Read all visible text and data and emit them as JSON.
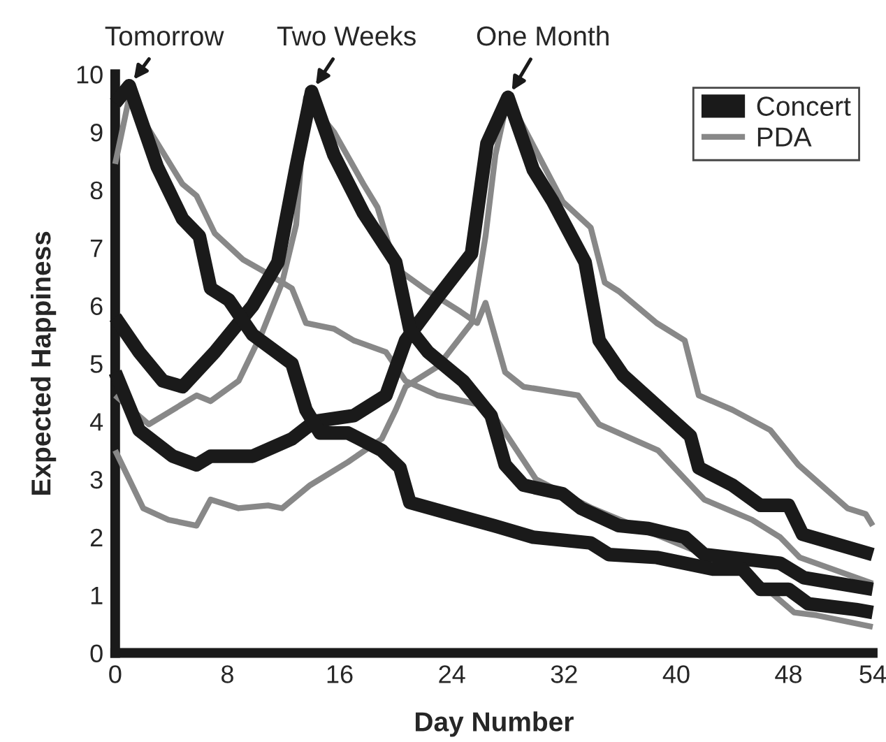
{
  "chart_data": {
    "type": "line",
    "xlabel": "Day Number",
    "ylabel": "Expected Happiness",
    "xlim": [
      0,
      54
    ],
    "xticks": [
      0,
      8,
      16,
      24,
      32,
      40,
      48,
      54
    ],
    "ylim": [
      0,
      10
    ],
    "yticks": [
      0,
      1,
      2,
      3,
      4,
      5,
      6,
      7,
      8,
      9,
      10
    ],
    "grid": false,
    "legend": "top right",
    "marker": "none",
    "line_style": "solid",
    "annotations": [
      {
        "text": "Tomorrow",
        "x": 1,
        "y": 9.8
      },
      {
        "text": "Two Weeks",
        "x": 14,
        "y": 9.7
      },
      {
        "text": "One Month",
        "x": 28,
        "y": 9.6
      }
    ],
    "series": [
      {
        "name": "Concert",
        "color": "#1a1a1a",
        "x": [
          0,
          1,
          3,
          4.8,
          6,
          6.8,
          8.1,
          9.8,
          12.6,
          13.6,
          14.6,
          16.6,
          19,
          20.3,
          21,
          24,
          27,
          29.8,
          33.9,
          35.2,
          38.6,
          42.6,
          44.7,
          46,
          48,
          49.4,
          52.8,
          54
        ],
        "values": [
          9.5,
          9.8,
          8.4,
          7.5,
          7.2,
          6.3,
          6.1,
          5.5,
          5.0,
          4.2,
          3.8,
          3.8,
          3.5,
          3.2,
          2.6,
          2.4,
          2.2,
          2.0,
          1.9,
          1.7,
          1.65,
          1.45,
          1.45,
          1.1,
          1.1,
          0.85,
          0.75,
          0.7
        ]
      },
      {
        "color": "#1a1a1a",
        "x": [
          0,
          1.7,
          3.4,
          4.8,
          7.1,
          9.8,
          11.6,
          12.9,
          14,
          15.6,
          17.7,
          20,
          21,
          22.3,
          24.8,
          26.8,
          27.8,
          29.1,
          31.9,
          33.2,
          35.9,
          38,
          40.6,
          42,
          47.4,
          49.1,
          54
        ],
        "values": [
          5.8,
          5.2,
          4.7,
          4.6,
          5.2,
          6.0,
          6.75,
          8.4,
          9.7,
          8.6,
          7.6,
          6.75,
          5.6,
          5.2,
          4.7,
          4.1,
          3.25,
          2.9,
          2.75,
          2.5,
          2.2,
          2.15,
          2.0,
          1.7,
          1.55,
          1.3,
          1.1
        ]
      },
      {
        "color": "#1a1a1a",
        "x": [
          0,
          1.7,
          4.1,
          5.8,
          6.8,
          9.8,
          12.6,
          14.2,
          17,
          19.3,
          20.7,
          23,
          25.4,
          26.5,
          28,
          29.8,
          31.2,
          33.5,
          34.5,
          36.2,
          41,
          41.6,
          44,
          46,
          48,
          49,
          54
        ],
        "values": [
          4.85,
          3.85,
          3.4,
          3.25,
          3.4,
          3.4,
          3.7,
          4.0,
          4.1,
          4.45,
          5.4,
          6.15,
          6.9,
          8.8,
          9.6,
          8.35,
          7.8,
          6.75,
          5.4,
          4.8,
          3.75,
          3.2,
          2.9,
          2.55,
          2.55,
          2.05,
          1.7
        ]
      },
      {
        "name": "PDA",
        "color": "#888888",
        "x": [
          0,
          1,
          4.8,
          5.8,
          7.1,
          9.1,
          10.9,
          12.6,
          13.6,
          15.6,
          17,
          19.3,
          20.7,
          23,
          25.8,
          27,
          30,
          34,
          38,
          42,
          46,
          48.4,
          50,
          52,
          54
        ],
        "values": [
          8.45,
          9.6,
          8.1,
          7.9,
          7.25,
          6.8,
          6.55,
          6.3,
          5.7,
          5.6,
          5.4,
          5.2,
          4.7,
          4.45,
          4.3,
          4.1,
          3.0,
          2.5,
          2.1,
          1.7,
          1.2,
          0.7,
          0.65,
          0.55,
          0.45
        ]
      },
      {
        "color": "#888888",
        "x": [
          0,
          2.4,
          5.8,
          6.8,
          8.8,
          10.5,
          11.9,
          12.9,
          13.6,
          15.6,
          17.7,
          18.7,
          20,
          22.3,
          24.6,
          25.8,
          26.4,
          27.8,
          29.1,
          33,
          34.5,
          38.7,
          42,
          45.4,
          47.4,
          48.8,
          54
        ],
        "values": [
          4.45,
          3.95,
          4.45,
          4.35,
          4.7,
          5.55,
          6.4,
          7.4,
          9.6,
          9.0,
          8.1,
          7.7,
          6.65,
          6.25,
          5.9,
          5.7,
          6.05,
          4.85,
          4.6,
          4.45,
          3.95,
          3.5,
          2.65,
          2.3,
          2.0,
          1.65,
          1.2
        ]
      },
      {
        "color": "#888888",
        "x": [
          0,
          2,
          3.8,
          5.8,
          6.8,
          8.8,
          10.9,
          11.9,
          13.9,
          16.6,
          19,
          20,
          20.7,
          23,
          25.4,
          26.4,
          27.1,
          28,
          31.9,
          33.9,
          34.9,
          35.9,
          38.6,
          40.6,
          41.6,
          44,
          46.7,
          48.7,
          50.8,
          52.2,
          53.5,
          54
        ],
        "values": [
          3.5,
          2.5,
          2.3,
          2.2,
          2.65,
          2.5,
          2.55,
          2.5,
          2.9,
          3.3,
          3.7,
          4.2,
          4.6,
          4.95,
          5.7,
          7.2,
          8.6,
          9.6,
          7.8,
          7.35,
          6.4,
          6.25,
          5.7,
          5.4,
          4.45,
          4.2,
          3.85,
          3.25,
          2.8,
          2.5,
          2.4,
          2.2
        ]
      }
    ]
  }
}
